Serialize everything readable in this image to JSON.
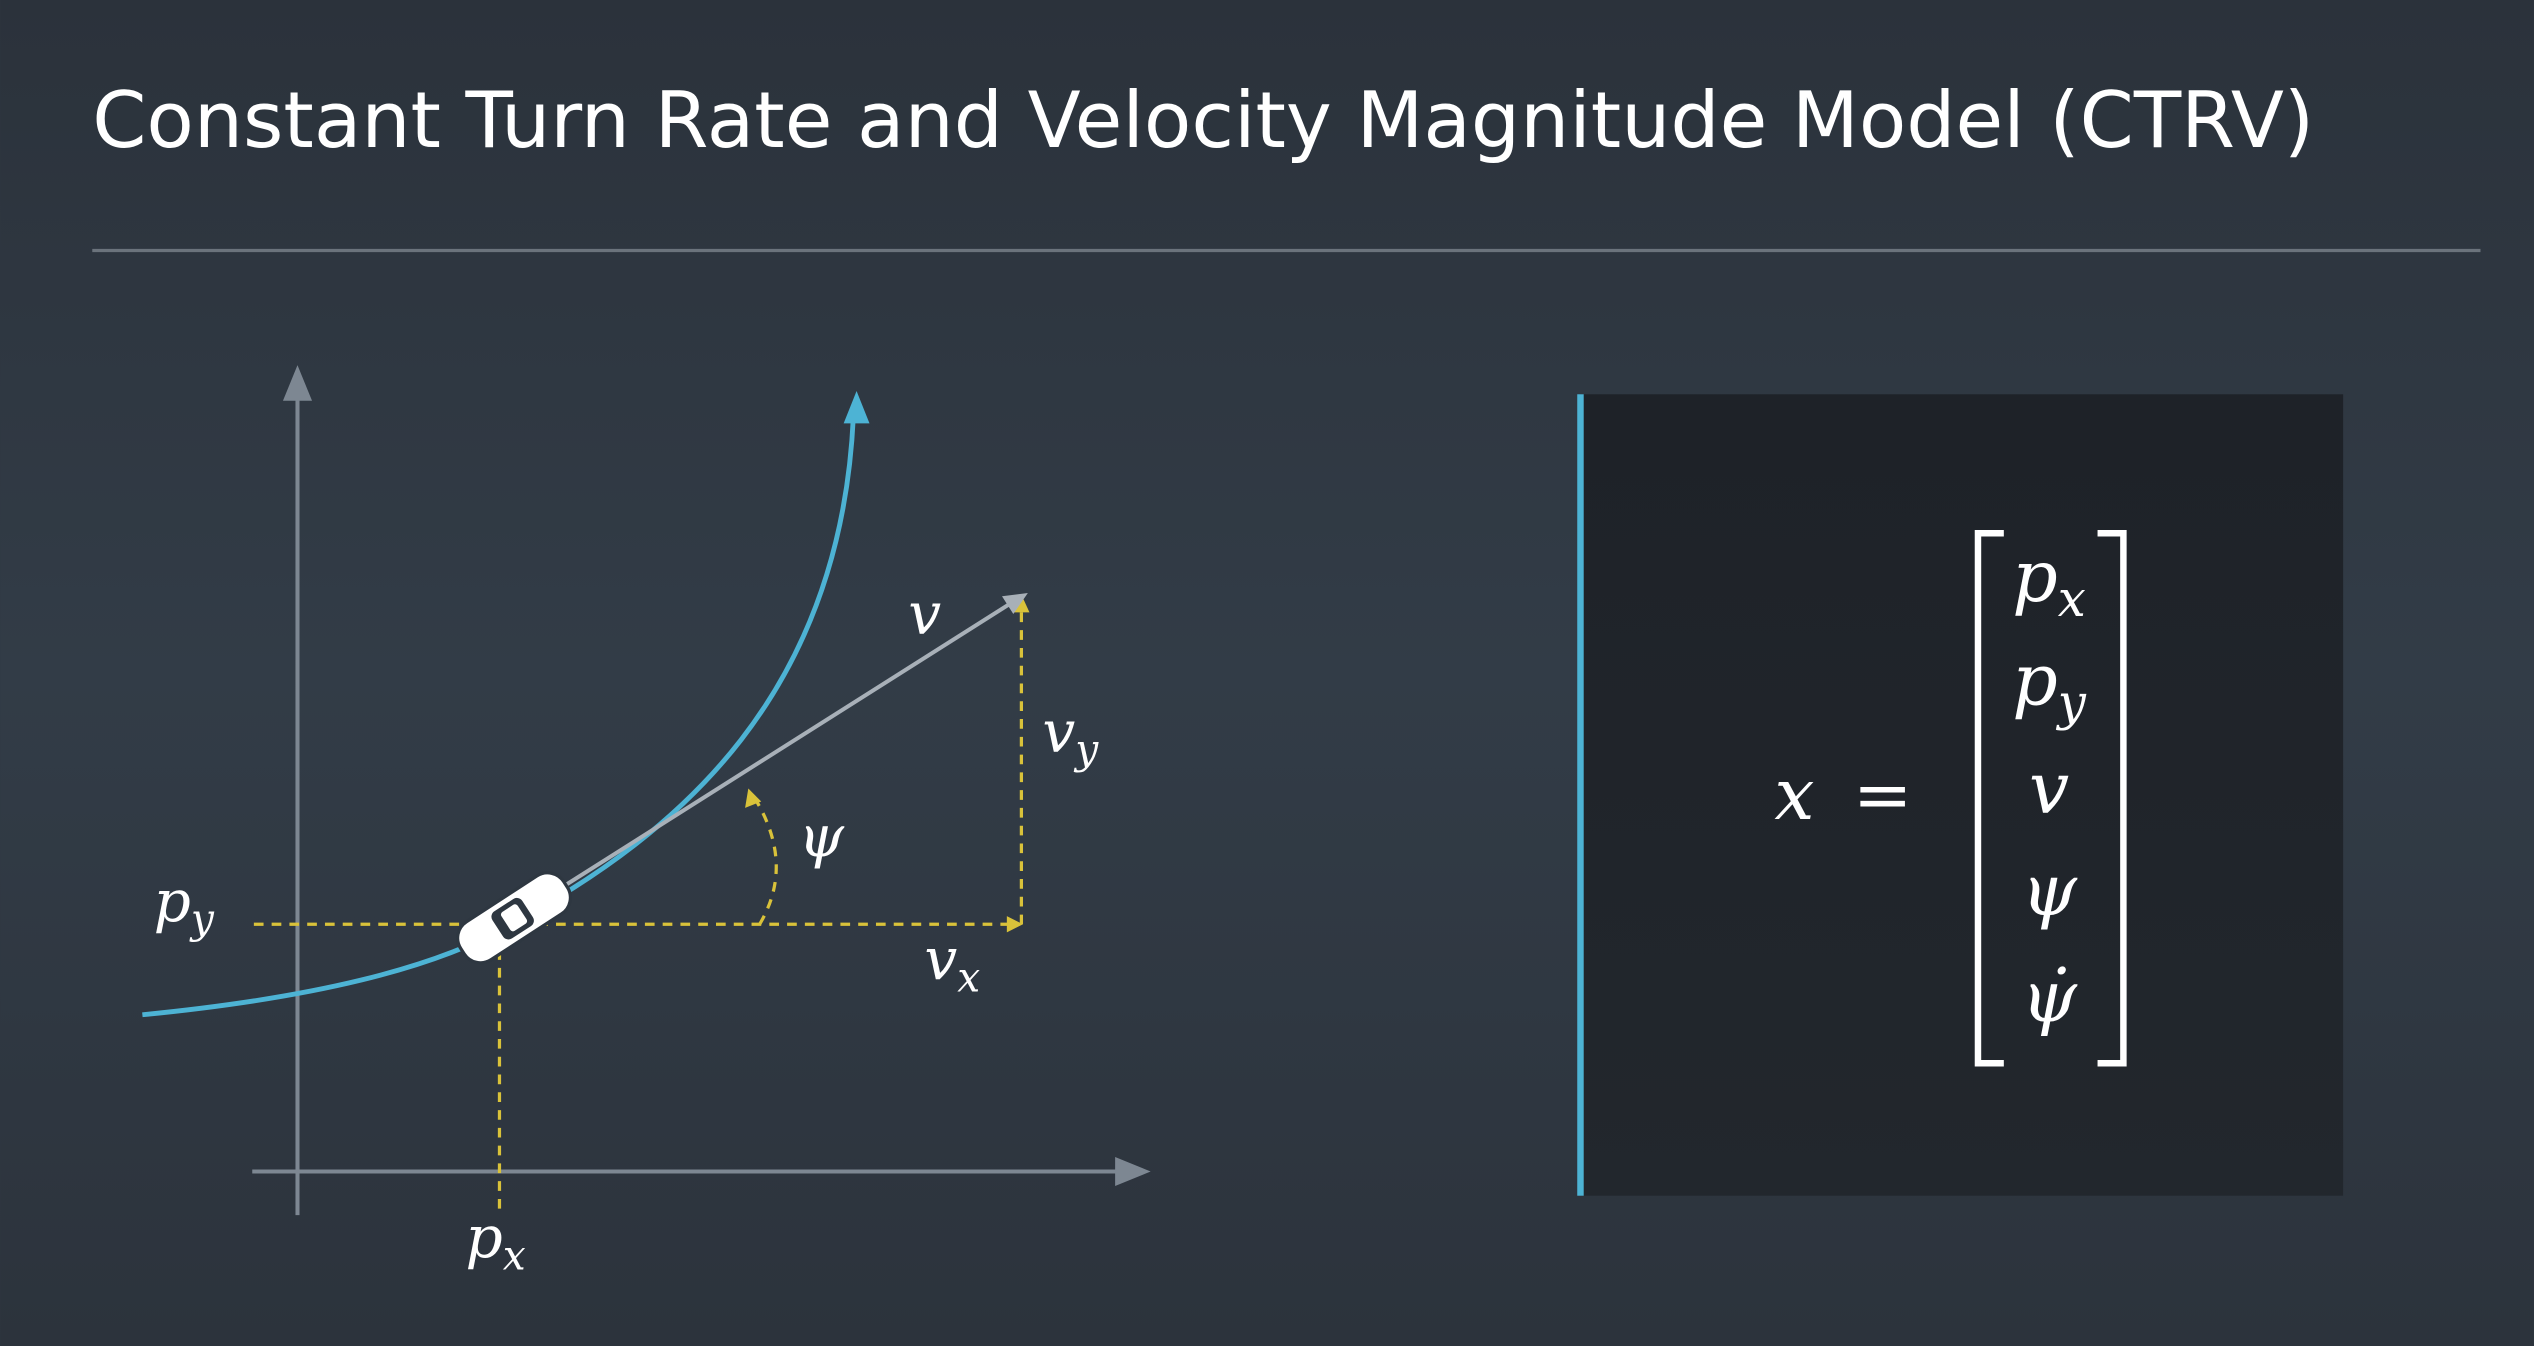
{
  "header": {
    "title": "Constant Turn Rate and Velocity Magnitude Model (CTRV)"
  },
  "diagram": {
    "labels": [
      {
        "base": "p",
        "sub": "y"
      },
      {
        "base": "p",
        "sub": "x"
      },
      {
        "base": "v"
      },
      {
        "base": "v",
        "sub": "y"
      },
      {
        "base": "v",
        "sub": "x"
      },
      {
        "base": "ψ"
      }
    ]
  },
  "state_vector": {
    "lhs": "x",
    "equals": "=",
    "entries": [
      {
        "base": "p",
        "sub": "x"
      },
      {
        "base": "p",
        "sub": "y"
      },
      {
        "base": "v"
      },
      {
        "base": "ψ"
      },
      {
        "base": "ψ̇"
      }
    ]
  }
}
